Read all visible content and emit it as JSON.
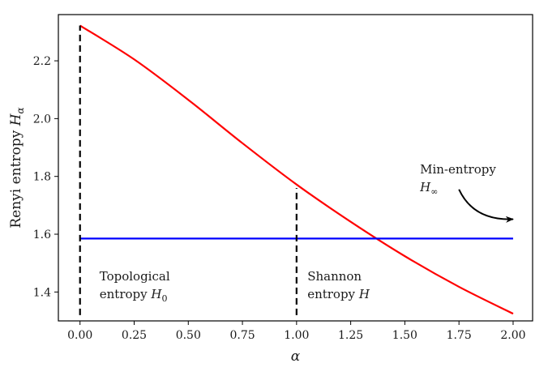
{
  "chart_data": {
    "type": "line",
    "title": "",
    "xlabel": "α",
    "ylabel": {
      "text": "Renyi entropy ",
      "symbol": "H",
      "subscript": "α"
    },
    "xlim": [
      -0.1,
      2.09
    ],
    "ylim": [
      1.3,
      2.36
    ],
    "x_ticks": [
      0.0,
      0.25,
      0.5,
      0.75,
      1.0,
      1.25,
      1.5,
      1.75,
      2.0
    ],
    "x_tick_labels": [
      "0.00",
      "0.25",
      "0.50",
      "0.75",
      "1.00",
      "1.25",
      "1.50",
      "1.75",
      "2.00"
    ],
    "y_ticks": [
      1.4,
      1.6,
      1.8,
      2.0,
      2.2
    ],
    "y_tick_labels": [
      "1.4",
      "1.6",
      "1.8",
      "2.0",
      "2.2"
    ],
    "grid": false,
    "series": [
      {
        "color": "#ff0000",
        "x": [
          0.0,
          0.25,
          0.5,
          0.75,
          1.0,
          1.25,
          1.5,
          1.75,
          2.0
        ],
        "y": [
          2.322,
          2.205,
          2.065,
          1.915,
          1.772,
          1.643,
          1.524,
          1.418,
          1.325
        ]
      },
      {
        "color": "#0000ff",
        "x": [
          0.0,
          2.0
        ],
        "y": [
          1.585,
          1.585
        ]
      }
    ],
    "vlines": [
      {
        "x": 0.0,
        "y_from": 1.32,
        "y_to": 2.322,
        "style": "dashed",
        "color": "#000000"
      },
      {
        "x": 1.0,
        "y_from": 1.32,
        "y_to": 1.76,
        "style": "dashed",
        "color": "#000000"
      }
    ],
    "annotations": [
      {
        "name": "topological-label",
        "line1": "Topological",
        "line2_text": "entropy ",
        "line2_symbol": "H",
        "line2_sub": "0",
        "x": 0.09,
        "y": 1.44
      },
      {
        "name": "shannon-label",
        "line1": "Shannon",
        "line2_text": "entropy ",
        "line2_symbol": "H",
        "line2_sub": "",
        "x": 1.05,
        "y": 1.44
      },
      {
        "name": "min-entropy-label",
        "line1": "Min-entropy",
        "line2_text": "",
        "line2_symbol": "H",
        "line2_sub": "∞",
        "x": 1.57,
        "y": 1.81
      }
    ],
    "arrow": {
      "from": [
        1.75,
        1.755
      ],
      "to": [
        2.0,
        1.652
      ],
      "color": "#000000"
    }
  }
}
